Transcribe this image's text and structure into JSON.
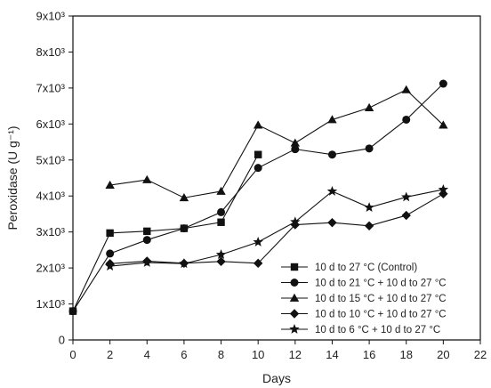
{
  "chart_data": {
    "type": "line",
    "xlabel": "Days",
    "ylabel": "Peroxidase (U g⁻¹)",
    "xlim": [
      0,
      22
    ],
    "ylim": [
      0,
      9000
    ],
    "x_ticks": [
      "0",
      "2",
      "4",
      "6",
      "8",
      "10",
      "12",
      "14",
      "16",
      "18",
      "20",
      "22"
    ],
    "y_ticks": [
      "0",
      "1x10³",
      "2x10³",
      "3x10³",
      "4x10³",
      "5x10³",
      "6x10³",
      "7x10³",
      "8x10³",
      "9x10³"
    ],
    "grid": false,
    "legend_position": "bottom-right",
    "series": [
      {
        "name": "10 d to  27 °C (Control)",
        "marker": "square",
        "x": [
          0,
          2,
          4,
          6,
          8,
          10
        ],
        "y": [
          800,
          2970,
          3020,
          3100,
          3270,
          5150
        ]
      },
      {
        "name": "10 d to  21 °C + 10 d to 27 °C",
        "marker": "circle",
        "x": [
          0,
          2,
          4,
          6,
          8,
          10,
          12,
          14,
          16,
          18,
          20
        ],
        "y": [
          800,
          2400,
          2780,
          3100,
          3550,
          4780,
          5300,
          5150,
          5320,
          6120,
          7120
        ]
      },
      {
        "name": "10 d to 15 °C + 10 d to 27 °C",
        "marker": "triangle",
        "x": [
          2,
          4,
          6,
          8,
          10,
          12,
          14,
          16,
          18,
          20
        ],
        "y": [
          4300,
          4450,
          3950,
          4130,
          5970,
          5470,
          6120,
          6450,
          6950,
          5970
        ]
      },
      {
        "name": "10 d to 10 °C + 10 d to 27 °C",
        "marker": "diamond",
        "x": [
          2,
          4,
          6,
          8,
          10,
          12,
          14,
          16,
          18,
          20
        ],
        "y": [
          2120,
          2190,
          2130,
          2180,
          2130,
          3200,
          3260,
          3170,
          3460,
          4060
        ]
      },
      {
        "name": "10 d to   6 °C + 10 d to 27 °C",
        "marker": "star",
        "x": [
          2,
          4,
          6,
          8,
          10,
          12,
          14,
          16,
          18,
          20
        ],
        "y": [
          2050,
          2150,
          2120,
          2370,
          2720,
          3280,
          4130,
          3680,
          3970,
          4180
        ]
      }
    ]
  }
}
